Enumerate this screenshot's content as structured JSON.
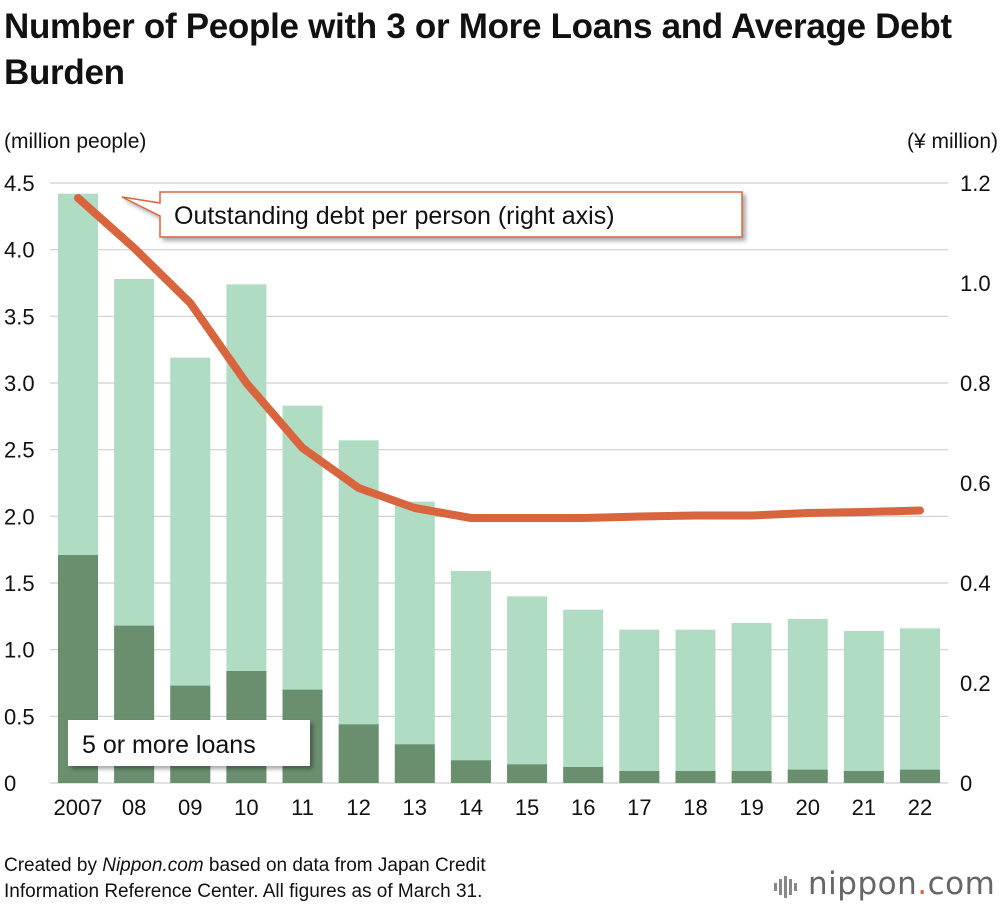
{
  "chart_data": {
    "type": "bar",
    "title": "Number of People with 3 or More Loans and Average Debt Burden",
    "left_axis_label": "(million people)",
    "right_axis_label": "(¥ million)",
    "categories": [
      "2007",
      "08",
      "09",
      "10",
      "11",
      "12",
      "13",
      "14",
      "15",
      "16",
      "17",
      "18",
      "19",
      "20",
      "21",
      "22"
    ],
    "left_ylim": [
      0,
      4.5
    ],
    "left_ticks": [
      "0",
      "0.5",
      "1.0",
      "1.5",
      "2.0",
      "2.5",
      "3.0",
      "3.5",
      "4.0",
      "4.5"
    ],
    "right_ylim": [
      0,
      1.2
    ],
    "right_ticks": [
      "0",
      "0.2",
      "0.4",
      "0.6",
      "0.8",
      "1.0",
      "1.2"
    ],
    "grid": true,
    "series": [
      {
        "name": "3 or more loans",
        "axis": "left",
        "type": "bar",
        "color": "#b0dcc3",
        "values": [
          4.42,
          3.78,
          3.19,
          3.74,
          2.83,
          2.57,
          2.11,
          1.59,
          1.4,
          1.3,
          1.15,
          1.15,
          1.2,
          1.23,
          1.14,
          1.16
        ]
      },
      {
        "name": "5 or more loans",
        "axis": "left",
        "type": "bar",
        "color": "#6a8f6e",
        "values": [
          1.71,
          1.18,
          0.73,
          0.84,
          0.7,
          0.44,
          0.29,
          0.17,
          0.14,
          0.12,
          0.09,
          0.09,
          0.09,
          0.1,
          0.09,
          0.1
        ]
      },
      {
        "name": "Outstanding debt per person (right axis)",
        "axis": "right",
        "type": "line",
        "color": "#d9653e",
        "values": [
          1.17,
          1.07,
          0.96,
          0.8,
          0.67,
          0.59,
          0.55,
          0.53,
          0.53,
          0.53,
          0.533,
          0.535,
          0.535,
          0.54,
          0.542,
          0.545
        ]
      }
    ],
    "annotations": [
      "Outstanding debt per person (right axis)",
      "5 or more loans"
    ]
  },
  "footer": {
    "credit_prefix": "Created by ",
    "credit_source": "Nippon.com",
    "credit_line1_rest": " based on data from Japan Credit",
    "credit_line2": "Information Reference Center. All figures as of March 31."
  },
  "logo": {
    "name": "nippon",
    "dot": ".",
    "tld": "com",
    "accent": "#d9653e"
  }
}
